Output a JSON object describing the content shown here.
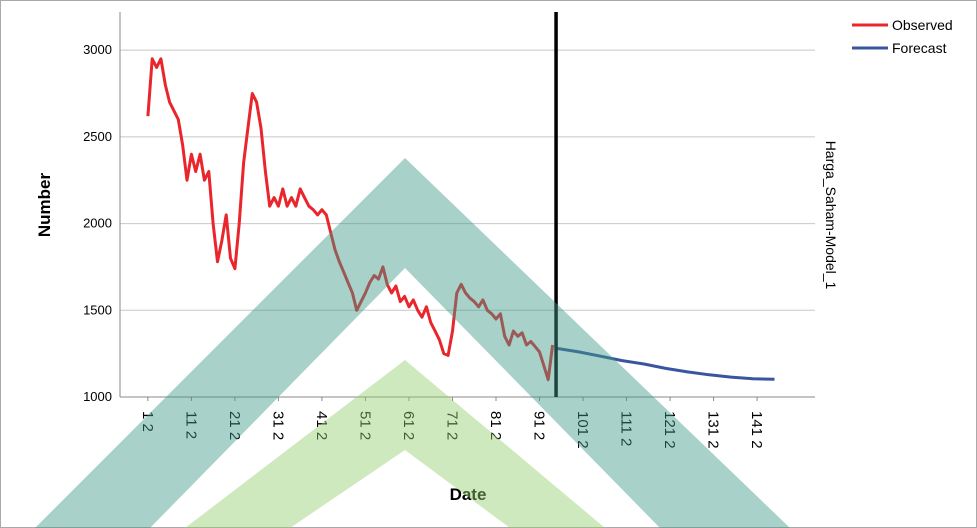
{
  "chart_data": {
    "type": "line",
    "x_label": "Date",
    "y_label": "Number",
    "side_label": "Harga_Saham-Model_1",
    "xlim": [
      -5.4,
      154.3
    ],
    "ylim": [
      1000,
      3220
    ],
    "yticks": [
      1000,
      1500,
      2000,
      2500,
      3000
    ],
    "xticks": [
      {
        "value": 1,
        "label": "1 2"
      },
      {
        "value": 11,
        "label": "11 2"
      },
      {
        "value": 21,
        "label": "21 2"
      },
      {
        "value": 31,
        "label": "31 2"
      },
      {
        "value": 41,
        "label": "41 2"
      },
      {
        "value": 51,
        "label": "51 2"
      },
      {
        "value": 61,
        "label": "61 2"
      },
      {
        "value": 71,
        "label": "71 2"
      },
      {
        "value": 81,
        "label": "81 2"
      },
      {
        "value": 91,
        "label": "91 2"
      },
      {
        "value": 101,
        "label": "101 2"
      },
      {
        "value": 111,
        "label": "111 2"
      },
      {
        "value": 121,
        "label": "121 2"
      },
      {
        "value": 131,
        "label": "131 2"
      },
      {
        "value": 141,
        "label": "141 2"
      }
    ],
    "grid": true,
    "reference_line_x": 94.8,
    "legend": "top-right",
    "series": [
      {
        "name": "Observed",
        "color": "#e8262b",
        "x": [
          1,
          2,
          3,
          4,
          5,
          6,
          7,
          8,
          9,
          10,
          11,
          12,
          13,
          14,
          15,
          16,
          17,
          18,
          19,
          20,
          21,
          22,
          23,
          24,
          25,
          26,
          27,
          28,
          29,
          30,
          31,
          32,
          33,
          34,
          35,
          36,
          37,
          38,
          39,
          40,
          41,
          42,
          43,
          44,
          45,
          46,
          47,
          48,
          49,
          50,
          51,
          52,
          53,
          54,
          55,
          56,
          57,
          58,
          59,
          60,
          61,
          62,
          63,
          64,
          65,
          66,
          67,
          68,
          69,
          70,
          71,
          72,
          73,
          74,
          75,
          76,
          77,
          78,
          79,
          80,
          81,
          82,
          83,
          84,
          85,
          86,
          87,
          88,
          89,
          90,
          91,
          92,
          93,
          94
        ],
        "values": [
          2620,
          2950,
          2900,
          2950,
          2800,
          2700,
          2650,
          2600,
          2450,
          2250,
          2400,
          2300,
          2400,
          2250,
          2300,
          2000,
          1780,
          1900,
          2050,
          1800,
          1740,
          2000,
          2350,
          2550,
          2750,
          2700,
          2550,
          2300,
          2100,
          2150,
          2100,
          2200,
          2100,
          2150,
          2100,
          2200,
          2150,
          2100,
          2080,
          2050,
          2080,
          2050,
          1950,
          1850,
          1780,
          1720,
          1660,
          1600,
          1500,
          1550,
          1600,
          1660,
          1700,
          1680,
          1750,
          1650,
          1600,
          1640,
          1550,
          1580,
          1520,
          1560,
          1500,
          1460,
          1520,
          1430,
          1380,
          1330,
          1250,
          1240,
          1380,
          1600,
          1650,
          1600,
          1570,
          1550,
          1520,
          1560,
          1500,
          1480,
          1450,
          1480,
          1350,
          1300,
          1380,
          1350,
          1370,
          1300,
          1320,
          1290,
          1260,
          1180,
          1100,
          1300
        ]
      },
      {
        "name": "Forecast",
        "color": "#3a55a0",
        "x": [
          95,
          100,
          105,
          110,
          115,
          120,
          125,
          130,
          135,
          140,
          145
        ],
        "values": [
          1280,
          1260,
          1235,
          1210,
          1190,
          1165,
          1145,
          1128,
          1115,
          1105,
          1102
        ]
      }
    ]
  }
}
